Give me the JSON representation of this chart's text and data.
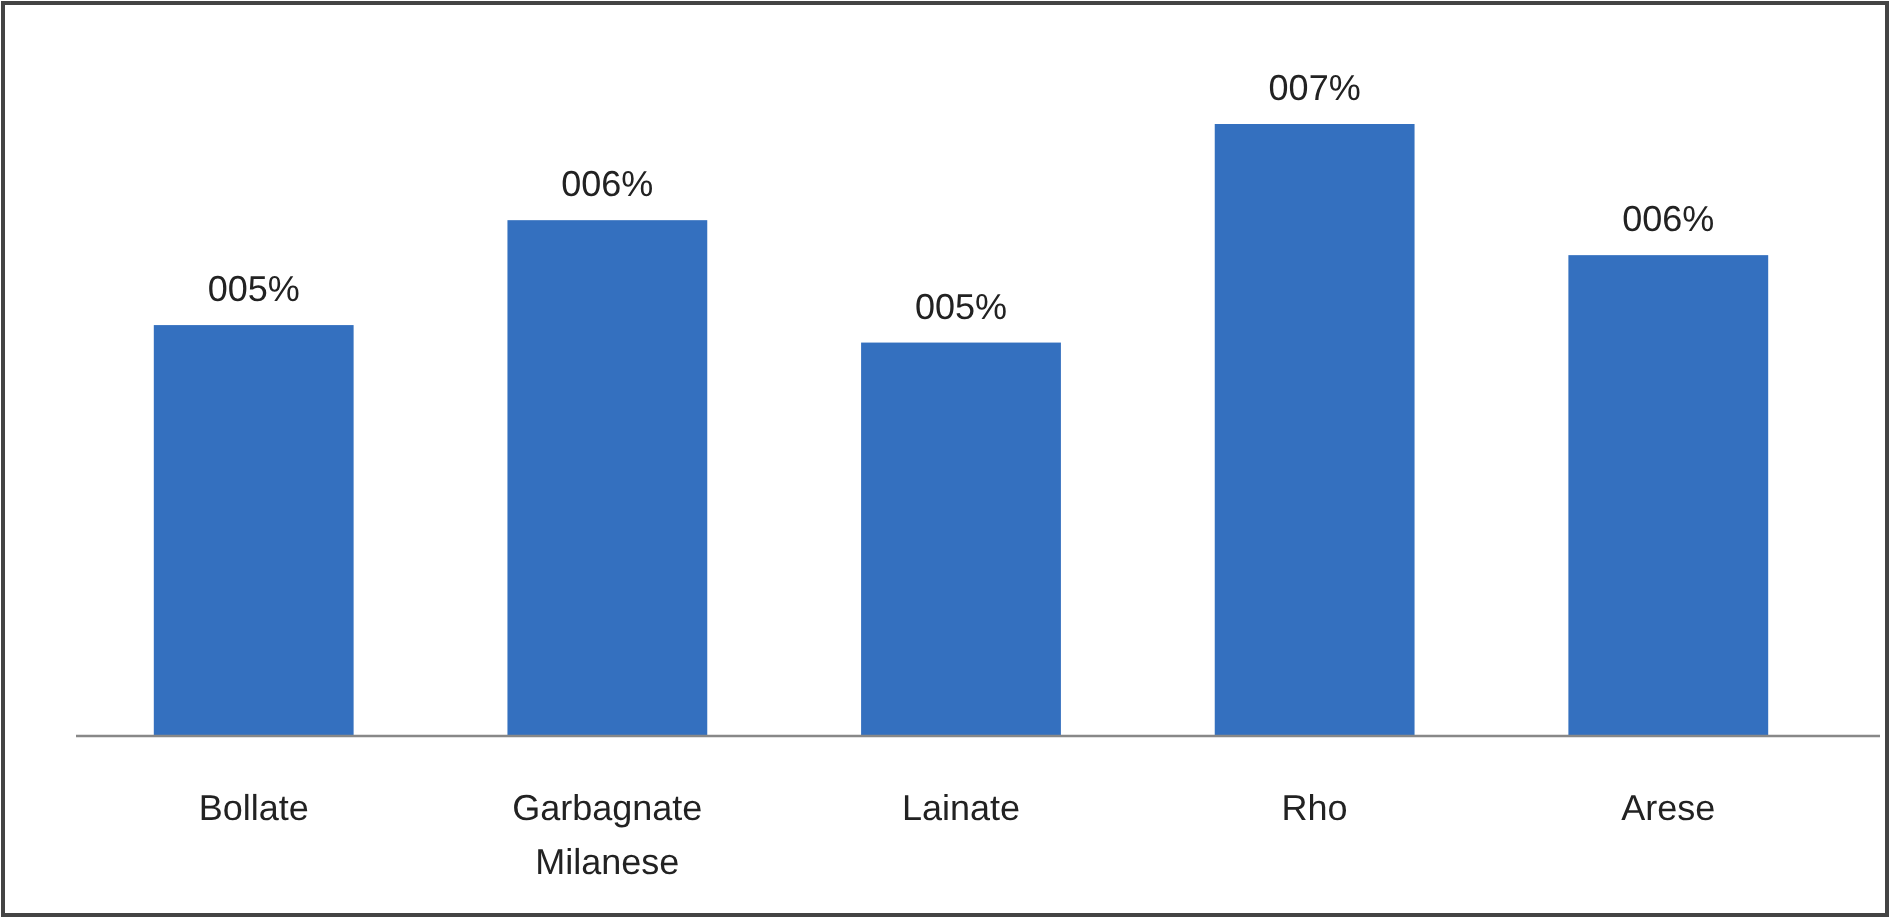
{
  "chart_data": {
    "type": "bar",
    "categories": [
      "Bollate",
      "Garbagnate Milanese",
      "Lainate",
      "Rho",
      "Arese"
    ],
    "values": [
      4.7,
      5.9,
      4.5,
      7,
      5.5
    ],
    "value_labels": [
      "005%",
      "006%",
      "005%",
      "007%",
      "006%"
    ],
    "color": "#3470bf"
  }
}
